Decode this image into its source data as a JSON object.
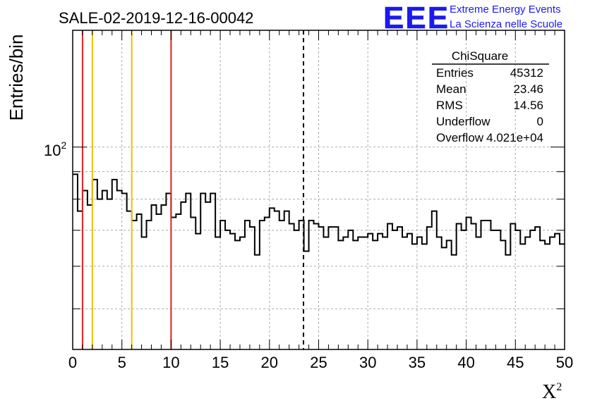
{
  "header": {
    "run_title": "SALE-02-2019-12-16-00042",
    "logo_text": "EEE",
    "logo_line1": "Extreme Energy Events",
    "logo_line2": "La Scienza nelle Scuole"
  },
  "stats_box": {
    "title": "ChiSquare",
    "rows": [
      {
        "label": "Entries",
        "value": "45312"
      },
      {
        "label": "Mean",
        "value": "23.46"
      },
      {
        "label": "RMS",
        "value": "14.56"
      },
      {
        "label": "Underflow",
        "value": "0"
      },
      {
        "label": "Overflow",
        "value": "4.021e+04"
      }
    ]
  },
  "colors": {
    "red_line": "#dd2222",
    "yellow_line": "#f0c000",
    "logo_blue": "#1a1aee",
    "grid": "#aaaaaa"
  },
  "chart_data": {
    "type": "histogram",
    "title": "SALE-02-2019-12-16-00042",
    "xlabel": "χ²",
    "ylabel": "Entries/bin",
    "xlim": [
      0,
      50
    ],
    "ylim": [
      42,
      165
    ],
    "yscale": "log",
    "x_ticks": [
      "0",
      "5",
      "10",
      "15",
      "20",
      "25",
      "30",
      "35",
      "40",
      "45",
      "50"
    ],
    "y_tick_label": "10",
    "y_tick_label_exp": "2",
    "bin_width": 0.5,
    "bin_start": 0,
    "values": [
      89,
      76,
      83,
      78,
      87,
      80,
      83,
      80,
      87,
      83,
      82,
      76,
      73,
      75,
      68,
      73,
      78,
      75,
      78,
      82,
      74,
      75,
      79,
      82,
      74,
      69,
      82,
      79,
      82,
      68,
      73,
      70,
      69,
      67,
      68,
      73,
      71,
      63,
      73,
      74,
      77,
      76,
      73,
      76,
      72,
      70,
      73,
      64,
      73,
      72,
      71,
      68,
      71,
      71,
      67,
      68,
      70,
      67,
      68,
      68,
      69,
      67,
      69,
      68,
      72,
      70,
      71,
      68,
      69,
      66,
      68,
      66,
      71,
      76,
      68,
      65,
      67,
      63,
      72,
      70,
      74,
      72,
      68,
      73,
      73,
      70,
      70,
      67,
      63,
      72,
      70,
      66,
      68,
      70,
      71,
      67,
      66,
      68,
      69,
      66
    ],
    "vertical_lines": [
      {
        "x": 1,
        "color": "red",
        "style": "solid"
      },
      {
        "x": 2,
        "color": "yellow",
        "style": "solid"
      },
      {
        "x": 6,
        "color": "yellow",
        "style": "solid"
      },
      {
        "x": 10,
        "color": "red",
        "style": "solid"
      },
      {
        "x": 23.46,
        "color": "black",
        "style": "dashed"
      }
    ]
  }
}
